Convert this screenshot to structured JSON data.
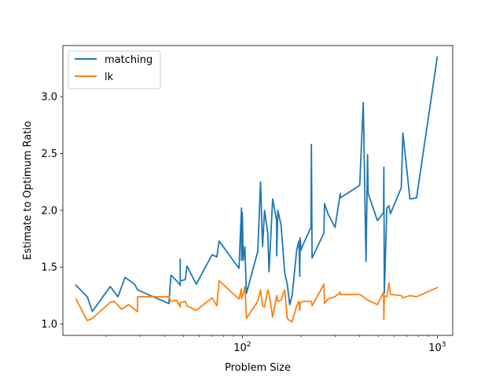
{
  "chart_data": {
    "type": "line",
    "title": "",
    "xlabel": "Problem Size",
    "ylabel": "Estimate to Optimum Ratio",
    "xscale": "log",
    "xlim": [
      12,
      1200
    ],
    "ylim": [
      0.9,
      3.45
    ],
    "x_ticks": [
      {
        "value": 100,
        "base": "10",
        "exp": "2"
      },
      {
        "value": 1000,
        "base": "10",
        "exp": "3"
      }
    ],
    "y_ticks": [
      1.0,
      1.5,
      2.0,
      2.5,
      3.0
    ],
    "y_tick_labels": [
      "1.0",
      "1.5",
      "2.0",
      "2.5",
      "3.0"
    ],
    "grid": false,
    "legend_position": "top-left",
    "colors": {
      "matching": "#1f77b4",
      "lk": "#ff7f0e"
    },
    "series": [
      {
        "name": "matching",
        "color": "#1f77b4",
        "points": [
          [
            14,
            1.34
          ],
          [
            16,
            1.24
          ],
          [
            17,
            1.11
          ],
          [
            21,
            1.33
          ],
          [
            23,
            1.24
          ],
          [
            25,
            1.41
          ],
          [
            28,
            1.35
          ],
          [
            29,
            1.3
          ],
          [
            42,
            1.18
          ],
          [
            43,
            1.43
          ],
          [
            46,
            1.38
          ],
          [
            48,
            1.34
          ],
          [
            48,
            1.57
          ],
          [
            48,
            1.38
          ],
          [
            51,
            1.39
          ],
          [
            52,
            1.51
          ],
          [
            58,
            1.35
          ],
          [
            70,
            1.61
          ],
          [
            74,
            1.59
          ],
          [
            76,
            1.73
          ],
          [
            96,
            1.49
          ],
          [
            99,
            2.02
          ],
          [
            99,
            1.56
          ],
          [
            100,
            1.98
          ],
          [
            101,
            1.56
          ],
          [
            103,
            1.68
          ],
          [
            105,
            1.27
          ],
          [
            120,
            1.64
          ],
          [
            124,
            2.25
          ],
          [
            127,
            1.68
          ],
          [
            130,
            2.0
          ],
          [
            135,
            1.8
          ],
          [
            137,
            1.46
          ],
          [
            143,
            2.1
          ],
          [
            150,
            1.91
          ],
          [
            150,
            1.6
          ],
          [
            152,
            2.0
          ],
          [
            158,
            1.87
          ],
          [
            165,
            1.45
          ],
          [
            170,
            1.35
          ],
          [
            175,
            1.17
          ],
          [
            180,
            1.25
          ],
          [
            190,
            1.65
          ],
          [
            195,
            1.73
          ],
          [
            197,
            1.42
          ],
          [
            198,
            1.76
          ],
          [
            200,
            1.65
          ],
          [
            205,
            1.7
          ],
          [
            225,
            1.85
          ],
          [
            226,
            2.58
          ],
          [
            228,
            1.58
          ],
          [
            262,
            1.8
          ],
          [
            264,
            2.06
          ],
          [
            275,
            1.97
          ],
          [
            299,
            1.85
          ],
          [
            318,
            2.15
          ],
          [
            318,
            2.11
          ],
          [
            400,
            2.22
          ],
          [
            417,
            2.95
          ],
          [
            431,
            1.55
          ],
          [
            439,
            2.49
          ],
          [
            442,
            2.15
          ],
          [
            493,
            1.91
          ],
          [
            530,
            1.98
          ],
          [
            532,
            2.38
          ],
          [
            535,
            1.27
          ],
          [
            551,
            2.02
          ],
          [
            565,
            2.04
          ],
          [
            575,
            1.97
          ],
          [
            654,
            2.2
          ],
          [
            666,
            2.68
          ],
          [
            724,
            2.1
          ],
          [
            783,
            2.11
          ],
          [
            1000,
            3.35
          ]
        ]
      },
      {
        "name": "lk",
        "color": "#ff7f0e",
        "points": [
          [
            14,
            1.22
          ],
          [
            16,
            1.03
          ],
          [
            17,
            1.05
          ],
          [
            21,
            1.19
          ],
          [
            22,
            1.2
          ],
          [
            24,
            1.13
          ],
          [
            26,
            1.17
          ],
          [
            29,
            1.11
          ],
          [
            29,
            1.24
          ],
          [
            42,
            1.24
          ],
          [
            43,
            1.2
          ],
          [
            46,
            1.21
          ],
          [
            48,
            1.15
          ],
          [
            48,
            1.19
          ],
          [
            51,
            1.2
          ],
          [
            52,
            1.16
          ],
          [
            58,
            1.12
          ],
          [
            70,
            1.23
          ],
          [
            74,
            1.16
          ],
          [
            76,
            1.38
          ],
          [
            96,
            1.22
          ],
          [
            99,
            1.31
          ],
          [
            99,
            1.22
          ],
          [
            100,
            1.25
          ],
          [
            101,
            1.26
          ],
          [
            103,
            1.33
          ],
          [
            105,
            1.05
          ],
          [
            120,
            1.2
          ],
          [
            124,
            1.3
          ],
          [
            127,
            1.16
          ],
          [
            130,
            1.15
          ],
          [
            135,
            1.3
          ],
          [
            137,
            1.27
          ],
          [
            143,
            1.06
          ],
          [
            150,
            1.25
          ],
          [
            152,
            1.2
          ],
          [
            158,
            1.21
          ],
          [
            165,
            1.3
          ],
          [
            170,
            1.05
          ],
          [
            175,
            1.03
          ],
          [
            180,
            1.02
          ],
          [
            190,
            1.16
          ],
          [
            195,
            1.2
          ],
          [
            197,
            1.12
          ],
          [
            198,
            1.19
          ],
          [
            200,
            1.19
          ],
          [
            205,
            1.2
          ],
          [
            225,
            1.2
          ],
          [
            226,
            1.2
          ],
          [
            228,
            1.16
          ],
          [
            262,
            1.35
          ],
          [
            264,
            1.18
          ],
          [
            275,
            1.22
          ],
          [
            299,
            1.24
          ],
          [
            318,
            1.28
          ],
          [
            318,
            1.26
          ],
          [
            400,
            1.26
          ],
          [
            417,
            1.24
          ],
          [
            431,
            1.22
          ],
          [
            439,
            1.21
          ],
          [
            493,
            1.17
          ],
          [
            530,
            1.28
          ],
          [
            532,
            1.04
          ],
          [
            535,
            1.25
          ],
          [
            551,
            1.24
          ],
          [
            565,
            1.36
          ],
          [
            575,
            1.26
          ],
          [
            654,
            1.25
          ],
          [
            666,
            1.23
          ],
          [
            724,
            1.25
          ],
          [
            783,
            1.24
          ],
          [
            1000,
            1.32
          ]
        ]
      }
    ]
  }
}
